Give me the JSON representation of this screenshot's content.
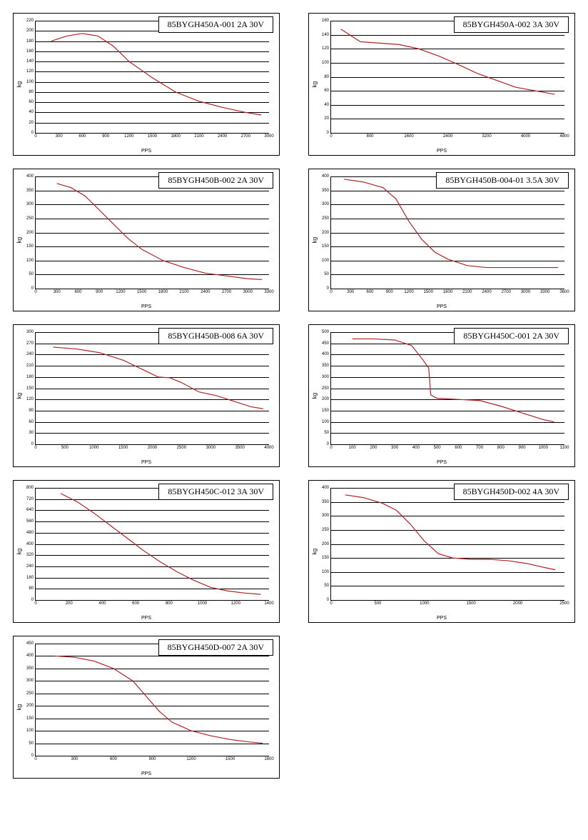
{
  "global": {
    "line_color": "#b22222",
    "line_width": 1.2,
    "grid_color": "#000000",
    "border_color": "#000000",
    "background_color": "#ffffff",
    "xlabel": "PPS",
    "ylabel": "kg",
    "tick_fontsize": 6,
    "legend_fontsize": 12,
    "label_fontsize": 7
  },
  "charts": [
    {
      "title": "85BYGH450A-001  2A  30V",
      "ylim": [
        0,
        220
      ],
      "ytick_step": 20,
      "xlim": [
        0,
        3000
      ],
      "xtick_step": 300,
      "data": [
        [
          200,
          180
        ],
        [
          400,
          190
        ],
        [
          600,
          195
        ],
        [
          800,
          190
        ],
        [
          1000,
          170
        ],
        [
          1200,
          140
        ],
        [
          1500,
          108
        ],
        [
          1800,
          80
        ],
        [
          2100,
          62
        ],
        [
          2400,
          50
        ],
        [
          2700,
          40
        ],
        [
          2900,
          35
        ]
      ]
    },
    {
      "title": "85BYGH450A-002 3A 30V",
      "ylim": [
        0,
        160
      ],
      "ytick_step": 20,
      "xlim": [
        0,
        4800
      ],
      "xtick_step": 800,
      "data": [
        [
          200,
          148
        ],
        [
          600,
          130
        ],
        [
          1000,
          128
        ],
        [
          1400,
          126
        ],
        [
          1800,
          120
        ],
        [
          2200,
          110
        ],
        [
          2600,
          98
        ],
        [
          3000,
          85
        ],
        [
          3400,
          75
        ],
        [
          3800,
          65
        ],
        [
          4200,
          60
        ],
        [
          4600,
          55
        ]
      ]
    },
    {
      "title": "85BYGH450B-002   2A  30V",
      "ylim": [
        0,
        400
      ],
      "ytick_step": 50,
      "xlim": [
        0,
        3300
      ],
      "xtick_step": 300,
      "data": [
        [
          300,
          375
        ],
        [
          500,
          360
        ],
        [
          700,
          330
        ],
        [
          900,
          280
        ],
        [
          1100,
          230
        ],
        [
          1300,
          180
        ],
        [
          1500,
          140
        ],
        [
          1800,
          100
        ],
        [
          2100,
          75
        ],
        [
          2400,
          55
        ],
        [
          2700,
          45
        ],
        [
          3000,
          35
        ],
        [
          3200,
          32
        ]
      ]
    },
    {
      "title": "85BYGH450B-004-01  3.5A  30V",
      "ylim": [
        0,
        400
      ],
      "ytick_step": 50,
      "xlim": [
        0,
        3600
      ],
      "xtick_step": 300,
      "data": [
        [
          200,
          390
        ],
        [
          500,
          380
        ],
        [
          800,
          360
        ],
        [
          1000,
          320
        ],
        [
          1200,
          240
        ],
        [
          1400,
          175
        ],
        [
          1600,
          130
        ],
        [
          1800,
          105
        ],
        [
          2100,
          82
        ],
        [
          2400,
          75
        ],
        [
          2700,
          75
        ],
        [
          3000,
          75
        ],
        [
          3300,
          75
        ],
        [
          3500,
          75
        ]
      ]
    },
    {
      "title": "85BYGH450B-008  6A  30V",
      "ylim": [
        0,
        300
      ],
      "ytick_step": 30,
      "xlim": [
        0,
        4000
      ],
      "xtick_step": 500,
      "data": [
        [
          300,
          260
        ],
        [
          700,
          255
        ],
        [
          1100,
          245
        ],
        [
          1500,
          225
        ],
        [
          1900,
          195
        ],
        [
          2100,
          180
        ],
        [
          2300,
          178
        ],
        [
          2500,
          165
        ],
        [
          2800,
          140
        ],
        [
          3100,
          130
        ],
        [
          3400,
          115
        ],
        [
          3700,
          100
        ],
        [
          3900,
          95
        ]
      ]
    },
    {
      "title": "85BYGH450C-001  2A  30V",
      "ylim": [
        0,
        500
      ],
      "ytick_step": 50,
      "xlim": [
        0,
        1100
      ],
      "xtick_step": 100,
      "data": [
        [
          100,
          470
        ],
        [
          200,
          470
        ],
        [
          300,
          465
        ],
        [
          380,
          440
        ],
        [
          430,
          380
        ],
        [
          460,
          340
        ],
        [
          470,
          220
        ],
        [
          500,
          205
        ],
        [
          600,
          200
        ],
        [
          700,
          195
        ],
        [
          800,
          170
        ],
        [
          900,
          140
        ],
        [
          1000,
          110
        ],
        [
          1050,
          100
        ]
      ]
    },
    {
      "title": "85BYGH450C-012 3A 30V",
      "ylim": [
        0,
        800
      ],
      "ytick_step": 80,
      "xlim": [
        0,
        1400
      ],
      "xtick_step": 200,
      "data": [
        [
          150,
          760
        ],
        [
          250,
          700
        ],
        [
          350,
          620
        ],
        [
          450,
          530
        ],
        [
          550,
          440
        ],
        [
          650,
          350
        ],
        [
          750,
          270
        ],
        [
          850,
          200
        ],
        [
          950,
          140
        ],
        [
          1050,
          90
        ],
        [
          1150,
          65
        ],
        [
          1250,
          50
        ],
        [
          1350,
          40
        ]
      ]
    },
    {
      "title": "85BYGH450D-002   4A  30V",
      "ylim": [
        0,
        400
      ],
      "ytick_step": 50,
      "xlim": [
        0,
        2500
      ],
      "xtick_step": 500,
      "data": [
        [
          150,
          375
        ],
        [
          350,
          365
        ],
        [
          550,
          345
        ],
        [
          700,
          320
        ],
        [
          850,
          270
        ],
        [
          1000,
          210
        ],
        [
          1150,
          165
        ],
        [
          1300,
          150
        ],
        [
          1500,
          145
        ],
        [
          1700,
          145
        ],
        [
          1900,
          140
        ],
        [
          2100,
          130
        ],
        [
          2300,
          115
        ],
        [
          2400,
          108
        ]
      ]
    },
    {
      "title": "85BYGH450D-007 2A 30V",
      "ylim": [
        0,
        450
      ],
      "ytick_step": 50,
      "xlim": [
        0,
        1800
      ],
      "xtick_step": 300,
      "data": [
        [
          150,
          400
        ],
        [
          300,
          395
        ],
        [
          450,
          380
        ],
        [
          600,
          350
        ],
        [
          750,
          300
        ],
        [
          850,
          240
        ],
        [
          950,
          180
        ],
        [
          1050,
          135
        ],
        [
          1200,
          100
        ],
        [
          1350,
          80
        ],
        [
          1500,
          65
        ],
        [
          1650,
          55
        ],
        [
          1750,
          50
        ]
      ]
    }
  ]
}
